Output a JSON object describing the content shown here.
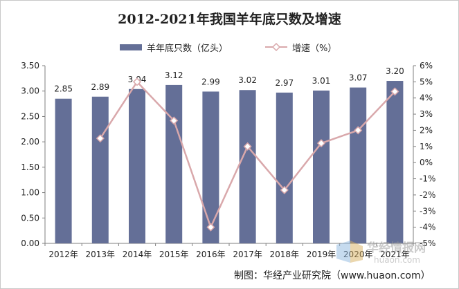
{
  "chart_data": {
    "type": "bar+line",
    "title": "2012-2021年我国羊年底只数及增速",
    "categories": [
      "2012年",
      "2013年",
      "2014年",
      "2015年",
      "2016年",
      "2017年",
      "2018年",
      "2019年",
      "2020年",
      "2021年"
    ],
    "series": [
      {
        "name": "羊年底只数（亿头）",
        "type": "bar",
        "axis": "left",
        "color": "#646f97",
        "values": [
          2.85,
          2.89,
          3.04,
          3.12,
          2.99,
          3.02,
          2.97,
          3.01,
          3.07,
          3.2
        ],
        "data_labels": [
          "2.85",
          "2.89",
          "3.04",
          "3.12",
          "2.99",
          "3.02",
          "2.97",
          "3.01",
          "3.07",
          "3.20"
        ]
      },
      {
        "name": "增速（%）",
        "type": "line",
        "axis": "right",
        "color": "#d9a8ab",
        "marker": "diamond",
        "values": [
          null,
          1.5,
          5.0,
          2.6,
          -4.0,
          1.0,
          -1.7,
          1.2,
          2.0,
          4.4
        ]
      }
    ],
    "y_left": {
      "min": 0,
      "max": 3.5,
      "ticks": [
        "0.00",
        "0.50",
        "1.00",
        "1.50",
        "2.00",
        "2.50",
        "3.00",
        "3.50"
      ]
    },
    "y_right": {
      "min": -5,
      "max": 6,
      "ticks": [
        "-5%",
        "-4%",
        "-3%",
        "-2%",
        "-1%",
        "0%",
        "1%",
        "2%",
        "3%",
        "4%",
        "5%",
        "6%"
      ]
    },
    "grid": false,
    "legend_position": "top"
  },
  "credit": "制图：华经产业研究院（www.huaon.com）",
  "watermark": {
    "brand": "华经情报网",
    "url": "huaon.com"
  }
}
